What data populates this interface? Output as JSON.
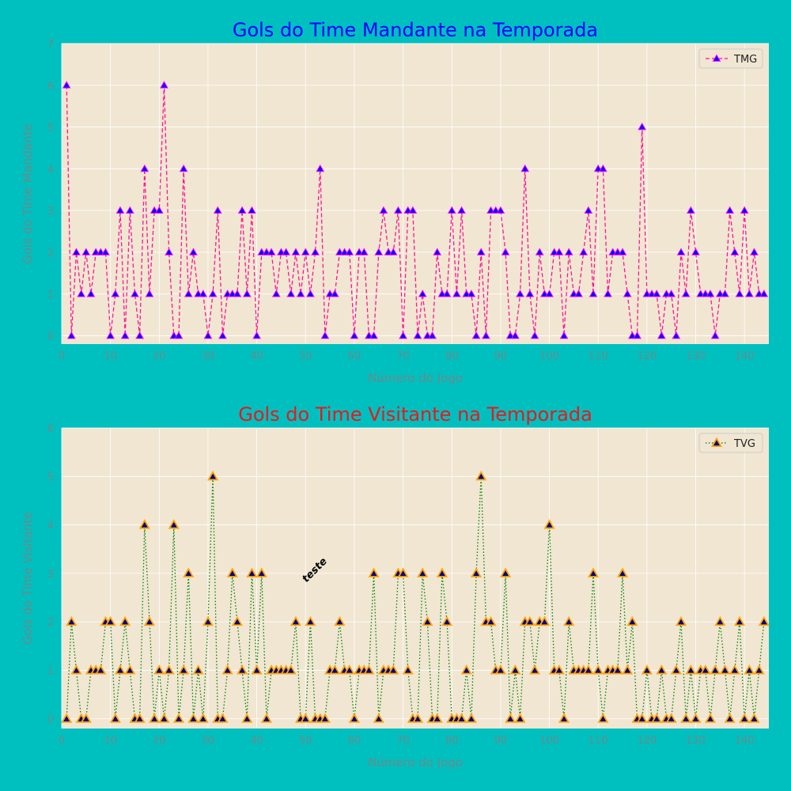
{
  "chart_data": [
    {
      "type": "line",
      "title": "Gols do Time Mandante na Temporada",
      "xlabel": "Número do Jogo",
      "ylabel": "Gols do Time Mandante",
      "xlim": [
        0,
        145
      ],
      "ylim": [
        -0.2,
        7
      ],
      "xticks": [
        0,
        10,
        20,
        30,
        40,
        50,
        60,
        70,
        80,
        90,
        100,
        110,
        120,
        130,
        140
      ],
      "yticks": [
        0,
        1,
        2,
        3,
        4,
        5,
        6,
        7
      ],
      "grid": true,
      "legend_position": "top-right",
      "title_color": "#0000ff",
      "series": [
        {
          "name": "TMG",
          "line_style": "dashed",
          "line_color": "#ff1493",
          "marker": "triangle",
          "marker_color": "#0000ff",
          "marker_edge_color": "#ff00ff",
          "x": [
            1,
            2,
            3,
            4,
            5,
            6,
            7,
            8,
            9,
            10,
            11,
            12,
            13,
            14,
            15,
            16,
            17,
            18,
            19,
            20,
            21,
            22,
            23,
            24,
            25,
            26,
            27,
            28,
            29,
            30,
            31,
            32,
            33,
            34,
            35,
            36,
            37,
            38,
            39,
            40,
            41,
            42,
            43,
            44,
            45,
            46,
            47,
            48,
            49,
            50,
            51,
            52,
            53,
            54,
            55,
            56,
            57,
            58,
            59,
            60,
            61,
            62,
            63,
            64,
            65,
            66,
            67,
            68,
            69,
            70,
            71,
            72,
            73,
            74,
            75,
            76,
            77,
            78,
            79,
            80,
            81,
            82,
            83,
            84,
            85,
            86,
            87,
            88,
            89,
            90,
            91,
            92,
            93,
            94,
            95,
            96,
            97,
            98,
            99,
            100,
            101,
            102,
            103,
            104,
            105,
            106,
            107,
            108,
            109,
            110,
            111,
            112,
            113,
            114,
            115,
            116,
            117,
            118,
            119,
            120,
            121,
            122,
            123,
            124,
            125,
            126,
            127,
            128,
            129,
            130,
            131,
            132,
            133,
            134,
            135,
            136,
            137,
            138,
            139,
            140,
            141,
            142,
            143,
            144
          ],
          "values": [
            6,
            0,
            2,
            1,
            2,
            1,
            2,
            2,
            2,
            0,
            1,
            3,
            0,
            3,
            1,
            0,
            4,
            1,
            3,
            3,
            6,
            2,
            0,
            0,
            4,
            1,
            2,
            1,
            1,
            0,
            1,
            3,
            0,
            1,
            1,
            1,
            3,
            1,
            3,
            0,
            2,
            2,
            2,
            1,
            2,
            2,
            1,
            2,
            1,
            2,
            1,
            2,
            4,
            0,
            1,
            1,
            2,
            2,
            2,
            0,
            2,
            2,
            0,
            0,
            2,
            3,
            2,
            2,
            3,
            0,
            3,
            3,
            0,
            1,
            0,
            0,
            2,
            1,
            1,
            3,
            1,
            3,
            1,
            1,
            0,
            2,
            0,
            3,
            3,
            3,
            2,
            0,
            0,
            1,
            4,
            1,
            0,
            2,
            1,
            1,
            2,
            2,
            0,
            2,
            1,
            1,
            2,
            3,
            1,
            4,
            4,
            1,
            2,
            2,
            2,
            1,
            0,
            0,
            5,
            1,
            1,
            1,
            0,
            1,
            1,
            0,
            2,
            1,
            3,
            2,
            1,
            1,
            1,
            0,
            1,
            1,
            3,
            2,
            1,
            3,
            1,
            2,
            1,
            1
          ]
        }
      ]
    },
    {
      "type": "line",
      "title": "Gols do Time Visitante na Temporada",
      "xlabel": "Número do Jogo",
      "ylabel": "Gols do Time Visitante",
      "xlim": [
        0,
        145
      ],
      "ylim": [
        -0.2,
        6
      ],
      "xticks": [
        0,
        10,
        20,
        30,
        40,
        50,
        60,
        70,
        80,
        90,
        100,
        110,
        120,
        130,
        140
      ],
      "yticks": [
        0,
        1,
        2,
        3,
        4,
        5,
        6
      ],
      "grid": true,
      "legend_position": "top-right",
      "title_color": "#e8191d",
      "annotation": {
        "text": "teste",
        "x": 50,
        "y": 3,
        "style": "bold italic",
        "rotation": 45
      },
      "series": [
        {
          "name": "TVG",
          "line_style": "dotted",
          "line_color": "#008000",
          "marker": "triangle",
          "marker_color": "#00008b",
          "marker_edge_color": "#ffa500",
          "x": [
            1,
            2,
            3,
            4,
            5,
            6,
            7,
            8,
            9,
            10,
            11,
            12,
            13,
            14,
            15,
            16,
            17,
            18,
            19,
            20,
            21,
            22,
            23,
            24,
            25,
            26,
            27,
            28,
            29,
            30,
            31,
            32,
            33,
            34,
            35,
            36,
            37,
            38,
            39,
            40,
            41,
            42,
            43,
            44,
            45,
            46,
            47,
            48,
            49,
            50,
            51,
            52,
            53,
            54,
            55,
            56,
            57,
            58,
            59,
            60,
            61,
            62,
            63,
            64,
            65,
            66,
            67,
            68,
            69,
            70,
            71,
            72,
            73,
            74,
            75,
            76,
            77,
            78,
            79,
            80,
            81,
            82,
            83,
            84,
            85,
            86,
            87,
            88,
            89,
            90,
            91,
            92,
            93,
            94,
            95,
            96,
            97,
            98,
            99,
            100,
            101,
            102,
            103,
            104,
            105,
            106,
            107,
            108,
            109,
            110,
            111,
            112,
            113,
            114,
            115,
            116,
            117,
            118,
            119,
            120,
            121,
            122,
            123,
            124,
            125,
            126,
            127,
            128,
            129,
            130,
            131,
            132,
            133,
            134,
            135,
            136,
            137,
            138,
            139,
            140,
            141,
            142,
            143,
            144
          ],
          "values": [
            0,
            2,
            1,
            0,
            0,
            1,
            1,
            1,
            2,
            2,
            0,
            1,
            2,
            1,
            0,
            0,
            4,
            2,
            0,
            1,
            0,
            1,
            4,
            0,
            1,
            3,
            0,
            1,
            0,
            2,
            5,
            0,
            0,
            1,
            3,
            2,
            1,
            0,
            3,
            1,
            3,
            0,
            1,
            1,
            1,
            1,
            1,
            2,
            0,
            0,
            2,
            0,
            0,
            0,
            1,
            1,
            2,
            1,
            1,
            0,
            1,
            1,
            1,
            3,
            0,
            1,
            1,
            1,
            3,
            3,
            1,
            0,
            0,
            3,
            2,
            0,
            0,
            3,
            2,
            0,
            0,
            0,
            1,
            0,
            3,
            5,
            2,
            2,
            1,
            1,
            3,
            0,
            1,
            0,
            2,
            2,
            1,
            2,
            2,
            4,
            1,
            1,
            0,
            2,
            1,
            1,
            1,
            1,
            3,
            1,
            0,
            1,
            1,
            1,
            3,
            1,
            2,
            0,
            0,
            1,
            0,
            0,
            1,
            0,
            0,
            1,
            2,
            0,
            1,
            0,
            1,
            1,
            0,
            1,
            2,
            1,
            0,
            1,
            2,
            0,
            1,
            0,
            1,
            2
          ]
        }
      ]
    }
  ]
}
